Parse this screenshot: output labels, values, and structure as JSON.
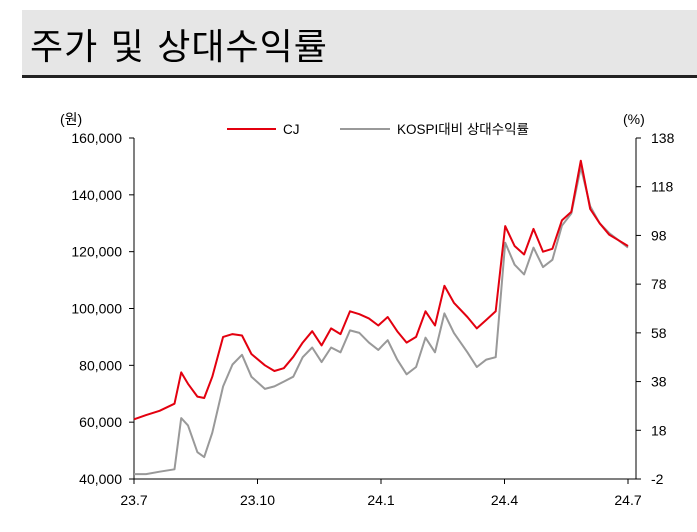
{
  "header": {
    "title": "주가 및 상대수익률"
  },
  "chart_data": {
    "type": "line",
    "title": "주가 및 상대수익률",
    "left_axis": {
      "unit": "(원)",
      "ticks": [
        "160,000",
        "140,000",
        "120,000",
        "100,000",
        "80,000",
        "60,000",
        "40,000"
      ],
      "ylim": [
        40000,
        160000
      ]
    },
    "right_axis": {
      "unit": "(%)",
      "ticks": [
        "138",
        "118",
        "98",
        "78",
        "58",
        "38",
        "18",
        "-2"
      ],
      "ylim": [
        -2,
        138
      ]
    },
    "x_ticks": [
      "23.7",
      "23.10",
      "24.1",
      "24.4",
      "24.7"
    ],
    "grid": false,
    "legend": "top",
    "series": [
      {
        "name": "CJ",
        "axis": "left",
        "color": "#e3000f",
        "x": [
          "2023-07-01",
          "2023-07-10",
          "2023-07-20",
          "2023-07-31",
          "2023-08-05",
          "2023-08-10",
          "2023-08-17",
          "2023-08-22",
          "2023-08-28",
          "2023-09-05",
          "2023-09-12",
          "2023-09-19",
          "2023-09-26",
          "2023-10-06",
          "2023-10-13",
          "2023-10-20",
          "2023-10-27",
          "2023-11-03",
          "2023-11-10",
          "2023-11-17",
          "2023-11-24",
          "2023-12-01",
          "2023-12-08",
          "2023-12-15",
          "2023-12-22",
          "2023-12-29",
          "2024-01-05",
          "2024-01-12",
          "2024-01-19",
          "2024-01-26",
          "2024-02-02",
          "2024-02-09",
          "2024-02-16",
          "2024-02-23",
          "2024-03-04",
          "2024-03-11",
          "2024-03-18",
          "2024-03-25",
          "2024-04-01",
          "2024-04-08",
          "2024-04-15",
          "2024-04-22",
          "2024-04-29",
          "2024-05-06",
          "2024-05-13",
          "2024-05-20",
          "2024-05-27",
          "2024-06-03",
          "2024-06-10",
          "2024-06-17",
          "2024-06-24",
          "2024-07-01"
        ],
        "values": [
          61000,
          62500,
          64000,
          66500,
          77500,
          73500,
          69000,
          68500,
          76000,
          90000,
          91000,
          90500,
          84000,
          80000,
          78000,
          79000,
          83000,
          88000,
          92000,
          87000,
          93000,
          91000,
          99000,
          98000,
          96500,
          94000,
          97000,
          92000,
          88000,
          90000,
          99000,
          94000,
          108000,
          102000,
          97000,
          93000,
          96000,
          99000,
          129000,
          122000,
          119000,
          128000,
          120000,
          121000,
          131000,
          134000,
          152000,
          135000,
          130000,
          126000,
          124000,
          122000
        ]
      },
      {
        "name": "KOSPI대비 상대수익률",
        "axis": "right",
        "color": "#999999",
        "x": [
          "2023-07-01",
          "2023-07-10",
          "2023-07-20",
          "2023-07-31",
          "2023-08-05",
          "2023-08-10",
          "2023-08-17",
          "2023-08-22",
          "2023-08-28",
          "2023-09-05",
          "2023-09-12",
          "2023-09-19",
          "2023-09-26",
          "2023-10-06",
          "2023-10-13",
          "2023-10-20",
          "2023-10-27",
          "2023-11-03",
          "2023-11-10",
          "2023-11-17",
          "2023-11-24",
          "2023-12-01",
          "2023-12-08",
          "2023-12-15",
          "2023-12-22",
          "2023-12-29",
          "2024-01-05",
          "2024-01-12",
          "2024-01-19",
          "2024-01-26",
          "2024-02-02",
          "2024-02-09",
          "2024-02-16",
          "2024-02-23",
          "2024-03-04",
          "2024-03-11",
          "2024-03-18",
          "2024-03-25",
          "2024-04-01",
          "2024-04-08",
          "2024-04-15",
          "2024-04-22",
          "2024-04-29",
          "2024-05-06",
          "2024-05-13",
          "2024-05-20",
          "2024-05-27",
          "2024-06-03",
          "2024-06-10",
          "2024-06-17",
          "2024-06-24",
          "2024-07-01"
        ],
        "values": [
          0,
          0,
          1,
          2,
          23,
          20,
          9,
          7,
          17,
          36,
          45,
          49,
          40,
          35,
          36,
          38,
          40,
          48,
          52,
          46,
          52,
          50,
          59,
          58,
          54,
          51,
          55,
          47,
          41,
          44,
          56,
          50,
          66,
          58,
          50,
          44,
          47,
          48,
          95,
          86,
          82,
          93,
          85,
          88,
          102,
          107,
          126,
          110,
          103,
          99,
          96,
          93
        ]
      }
    ]
  }
}
